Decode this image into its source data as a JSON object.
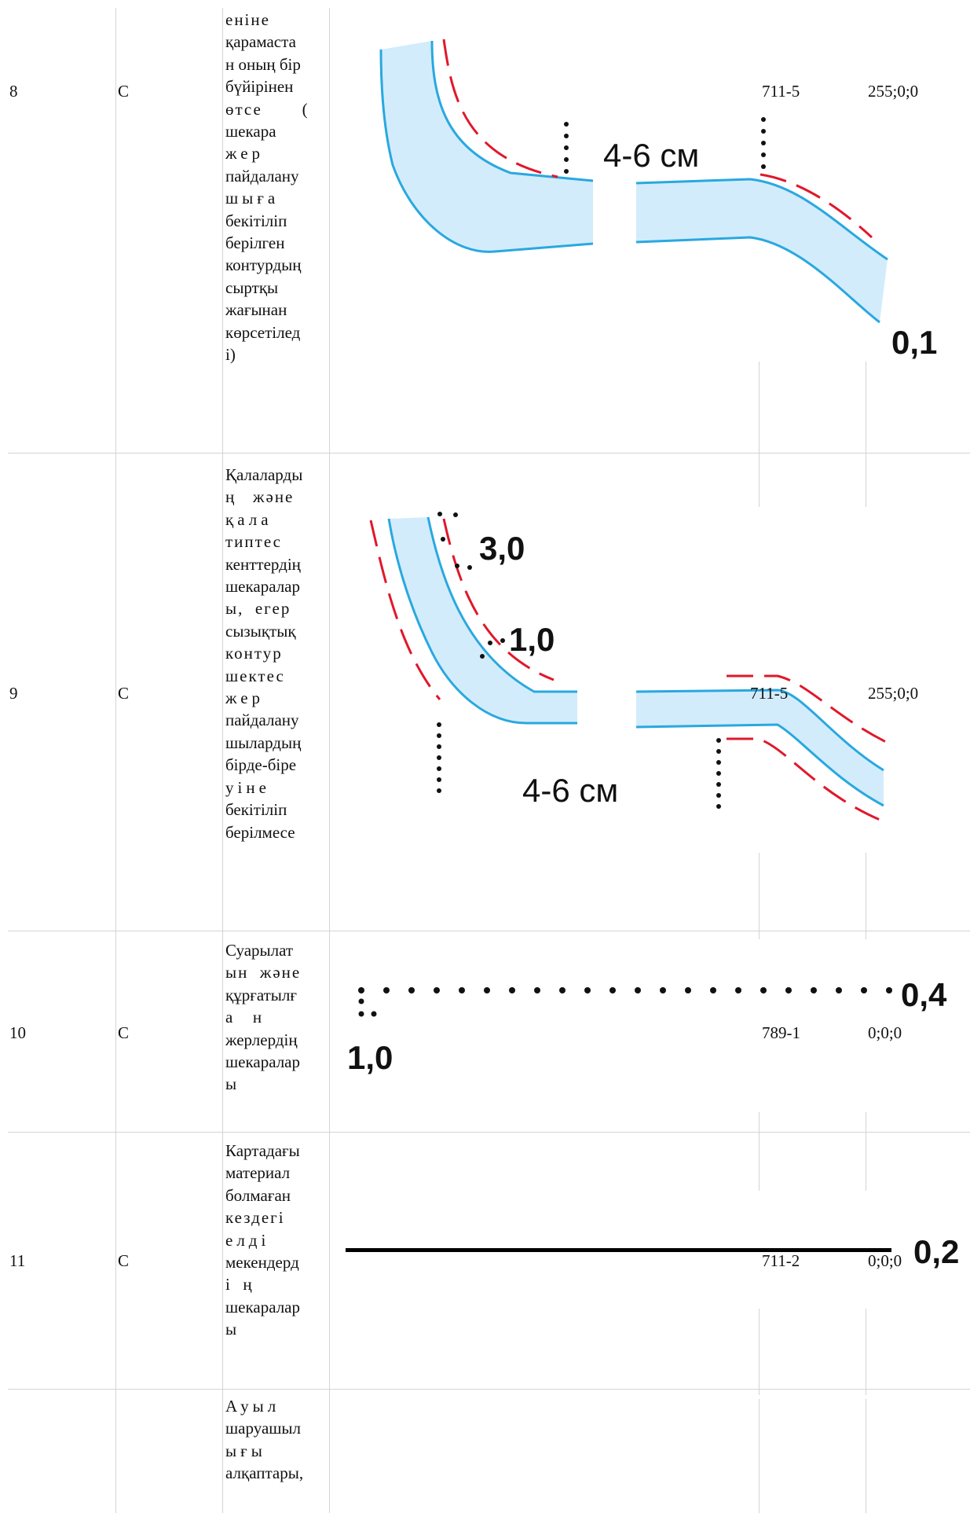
{
  "rows": [
    {
      "num": "8",
      "cat": "С",
      "desc": [
        "еніне",
        "қарамаста",
        "н оның бір",
        "бүйірінен",
        "өтсе       (",
        "шекара",
        "жер",
        "пайдалану",
        "шыға",
        "бекітіліп",
        "берілген",
        "контурдың",
        "сыртқы",
        "жағынан",
        "көрсетілед",
        "і)"
      ],
      "code": "711-5",
      "color": "255;0;0",
      "dims": [
        "4-6 см",
        "0,1"
      ]
    },
    {
      "num": "9",
      "cat": "С",
      "desc": [
        "Қалаларды",
        "ң   және",
        "қала",
        "типтес",
        "кенттердің",
        "шекаралар",
        "ы,  егер",
        "сызықтық",
        "контур",
        "шектес",
        "жер",
        "пайдалану",
        "шылардың",
        "бірде-біре",
        "уіне",
        "бекітіліп",
        "берілмесе"
      ],
      "code": "711-5",
      "color": "255;0;0",
      "dims": [
        "3,0",
        "1,0",
        "4-6 см"
      ]
    },
    {
      "num": "10",
      "cat": "С",
      "desc": [
        "Суарылат",
        "ын  және",
        "құрғатылғ",
        "а  н",
        "жерлердің",
        "шекаралар",
        "ы"
      ],
      "code": "789-1",
      "color": "0;0;0",
      "dims": [
        "0,4",
        "1,0"
      ]
    },
    {
      "num": "11",
      "cat": "С",
      "desc": [
        "Картадағы",
        "материал",
        "болмаған",
        "кездегі",
        "елді",
        "мекендерд",
        "і  ң",
        "шекаралар",
        "ы"
      ],
      "code": "711-2",
      "color": "0;0;0",
      "dims": [
        "0,2"
      ]
    },
    {
      "num": "",
      "cat": "",
      "desc": [
        "Ауыл",
        "шаруашыл",
        "ығы",
        "алқаптары,"
      ],
      "code": "",
      "color": ""
    }
  ],
  "colors": {
    "water_fill": "#d3ecfb",
    "water_line": "#29a8e0",
    "boundary_red": "#e0182b",
    "grid": "#d4d4d4"
  }
}
